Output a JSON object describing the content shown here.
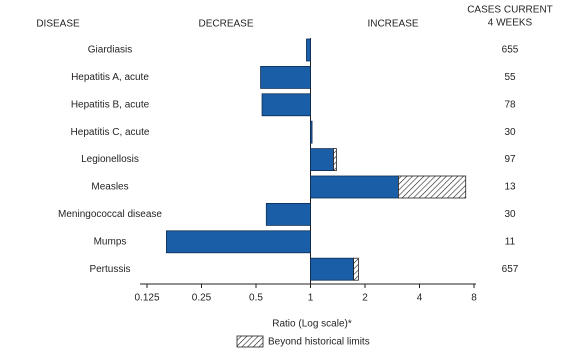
{
  "chart_data": {
    "type": "bar",
    "orientation": "horizontal",
    "headers": {
      "disease": "DISEASE",
      "decrease": "DECREASE",
      "increase": "INCREASE",
      "cases": [
        "CASES CURRENT",
        "4 WEEKS"
      ]
    },
    "categories": [
      "Giardiasis",
      "Hepatitis A, acute",
      "Hepatitis B, acute",
      "Hepatitis C, acute",
      "Legionellosis",
      "Measles",
      "Meningococcal disease",
      "Mumps",
      "Pertussis"
    ],
    "values": [
      0.95,
      0.53,
      0.54,
      1.02,
      1.39,
      7.2,
      0.57,
      0.16,
      1.84
    ],
    "historical_limits": [
      null,
      null,
      null,
      null,
      1.34,
      3.06,
      null,
      null,
      1.73
    ],
    "cases": [
      655,
      55,
      78,
      30,
      97,
      13,
      30,
      11,
      657
    ],
    "color": "#1b5ea8",
    "log_scale": true,
    "xlim": [
      0.125,
      8
    ],
    "xticks": [
      0.125,
      0.25,
      0.5,
      1,
      2,
      4,
      8
    ],
    "baseline": 1,
    "xlabel": "Ratio (Log scale)*",
    "legend": "Beyond historical limits"
  }
}
